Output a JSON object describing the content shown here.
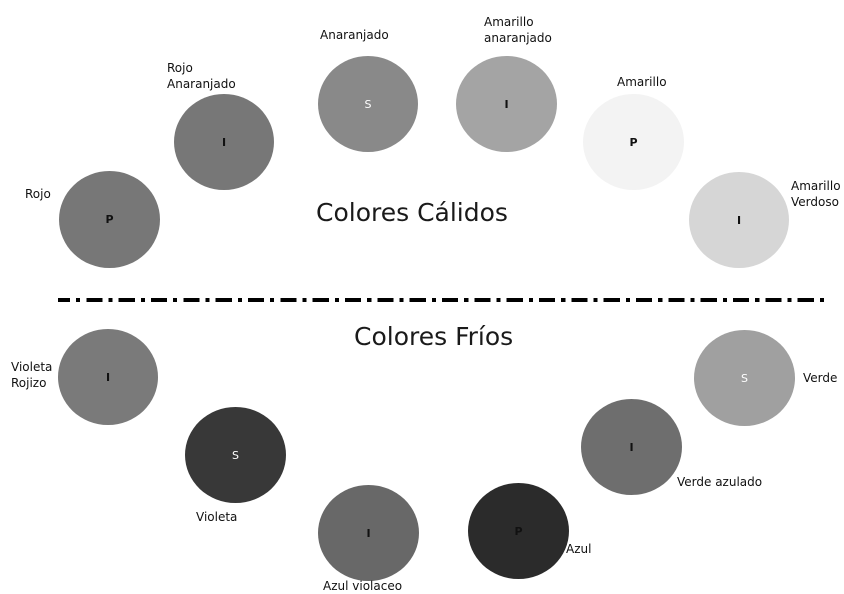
{
  "headings": {
    "warm": "Colores Cálidos",
    "cold": "Colores Fríos"
  },
  "colors": {
    "text_dark": "#111111",
    "text_light": "#ffffff",
    "gray_primary": "#777777",
    "gray_secondary": "#8a8a8a",
    "gray_light": "#f3f3f3",
    "gray_lighter": "#d6d6d6",
    "gray_dark": "#333333",
    "gray_darkest": "#2a2a2a"
  },
  "warm": [
    {
      "name": "Rojo",
      "code": "P",
      "fill": "#777777"
    },
    {
      "name_line1": "Rojo",
      "name_line2": "Anaranjado",
      "code": "I",
      "fill": "#777777"
    },
    {
      "name": "Anaranjado",
      "code": "S",
      "fill": "#898989"
    },
    {
      "name_line1": "Amarillo",
      "name_line2": "anaranjado",
      "code": "I",
      "fill": "#a4a4a4"
    },
    {
      "name": "Amarillo",
      "code": "P",
      "fill": "#f3f3f3"
    },
    {
      "name_line1": "Amarillo",
      "name_line2": "Verdoso",
      "code": "I",
      "fill": "#d6d6d6"
    }
  ],
  "cold": [
    {
      "name_line1": "Violeta",
      "name_line2": "Rojizo",
      "code": "I",
      "fill": "#7a7a7a"
    },
    {
      "name": "Violeta",
      "code": "S",
      "fill": "#383838"
    },
    {
      "name": "Azul violaceo",
      "code": "I",
      "fill": "#686868"
    },
    {
      "name": "Azul",
      "code": "P",
      "fill": "#2b2b2b"
    },
    {
      "name": "Verde azulado",
      "code": "I",
      "fill": "#6e6e6e"
    },
    {
      "name": "Verde",
      "code": "S",
      "fill": "#a0a0a0"
    }
  ]
}
